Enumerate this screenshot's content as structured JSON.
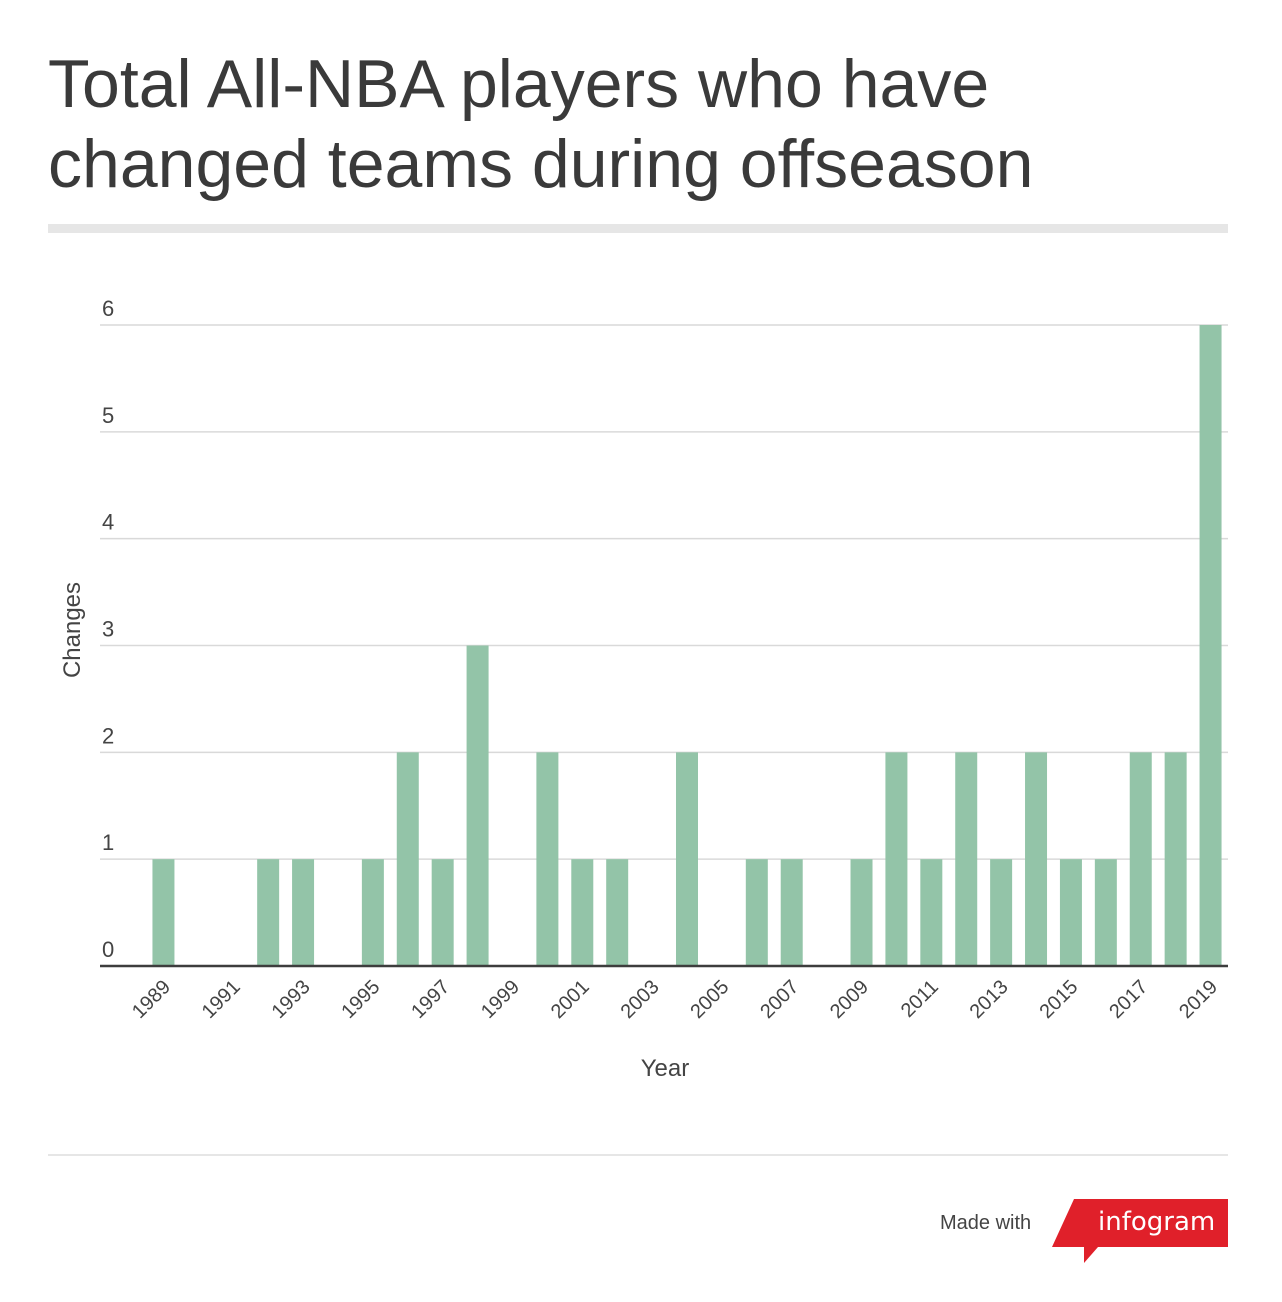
{
  "header": {
    "title_line1": "Total All-NBA players who have",
    "title_line2": "changed teams during offseason"
  },
  "chart_data": {
    "type": "bar",
    "title": "Total All-NBA players who have changed teams during offseason",
    "xlabel": "Year",
    "ylabel": "Changes",
    "ylim": [
      0,
      6
    ],
    "yticks": [
      0,
      1,
      2,
      3,
      4,
      5,
      6
    ],
    "grid": true,
    "categories": [
      "1989",
      "1990",
      "1991",
      "1992",
      "1993",
      "1994",
      "1995",
      "1996",
      "1997",
      "1998",
      "1999",
      "2000",
      "2001",
      "2002",
      "2003",
      "2004",
      "2005",
      "2006",
      "2007",
      "2008",
      "2009",
      "2010",
      "2011",
      "2012",
      "2013",
      "2014",
      "2015",
      "2016",
      "2017",
      "2018",
      "2019"
    ],
    "xtick_labels": [
      "1989",
      "1991",
      "1993",
      "1995",
      "1997",
      "1999",
      "2001",
      "2003",
      "2005",
      "2007",
      "2009",
      "2011",
      "2013",
      "2015",
      "2017",
      "2019"
    ],
    "values": [
      1,
      0,
      0,
      1,
      1,
      0,
      1,
      2,
      1,
      3,
      0,
      2,
      1,
      1,
      0,
      2,
      0,
      1,
      1,
      0,
      1,
      2,
      1,
      2,
      1,
      2,
      1,
      1,
      2,
      2,
      6
    ],
    "bar_color": "#93c4a8"
  },
  "footer": {
    "made_with": "Made with",
    "brand": "infogram",
    "brand_color": "#e0202a"
  }
}
